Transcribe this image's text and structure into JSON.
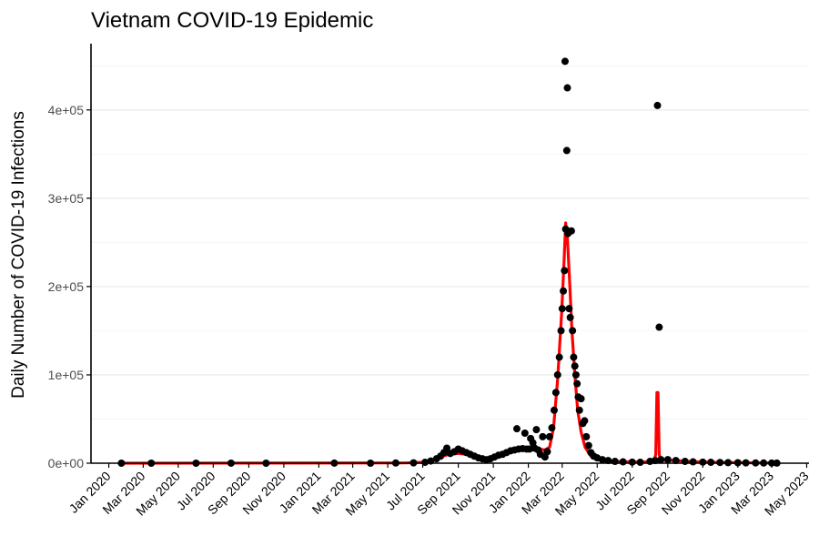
{
  "chart_data": {
    "type": "scatter",
    "title": "Vietnam COVID-19 Epidemic",
    "xlabel": "",
    "ylabel": "Daily Number of COVID-19 Infections",
    "x_domain": [
      "2019-12-01",
      "2023-05-05"
    ],
    "ylim": [
      0,
      475000
    ],
    "y_ticks": [
      {
        "value": 0,
        "label": "0e+00"
      },
      {
        "value": 100000,
        "label": "1e+05"
      },
      {
        "value": 200000,
        "label": "2e+05"
      },
      {
        "value": 300000,
        "label": "3e+05"
      },
      {
        "value": 400000,
        "label": "4e+05"
      }
    ],
    "x_ticks": [
      {
        "date": "2020-01-01",
        "label": "Jan 2020"
      },
      {
        "date": "2020-03-01",
        "label": "Mar 2020"
      },
      {
        "date": "2020-05-01",
        "label": "May 2020"
      },
      {
        "date": "2020-07-01",
        "label": "Jul 2020"
      },
      {
        "date": "2020-09-01",
        "label": "Sep 2020"
      },
      {
        "date": "2020-11-01",
        "label": "Nov 2020"
      },
      {
        "date": "2021-01-01",
        "label": "Jan 2021"
      },
      {
        "date": "2021-03-01",
        "label": "Mar 2021"
      },
      {
        "date": "2021-05-01",
        "label": "May 2021"
      },
      {
        "date": "2021-07-01",
        "label": "Jul 2021"
      },
      {
        "date": "2021-09-01",
        "label": "Sep 2021"
      },
      {
        "date": "2021-11-01",
        "label": "Nov 2021"
      },
      {
        "date": "2022-01-01",
        "label": "Jan 2022"
      },
      {
        "date": "2022-03-01",
        "label": "Mar 2022"
      },
      {
        "date": "2022-05-01",
        "label": "May 2022"
      },
      {
        "date": "2022-07-01",
        "label": "Jul 2022"
      },
      {
        "date": "2022-09-01",
        "label": "Sep 2022"
      },
      {
        "date": "2022-11-01",
        "label": "Nov 2022"
      },
      {
        "date": "2023-01-01",
        "label": "Jan 2023"
      },
      {
        "date": "2023-03-01",
        "label": "Mar 2023"
      },
      {
        "date": "2023-05-01",
        "label": "May 2023"
      }
    ],
    "grid": true,
    "legend": "none",
    "series": [
      {
        "kind": "points",
        "color": "#000000",
        "points": [
          {
            "x": "2020-01-23",
            "y": 0
          },
          {
            "x": "2020-03-15",
            "y": 10
          },
          {
            "x": "2020-06-01",
            "y": 0
          },
          {
            "x": "2020-08-01",
            "y": 30
          },
          {
            "x": "2020-10-01",
            "y": 0
          },
          {
            "x": "2021-01-28",
            "y": 80
          },
          {
            "x": "2021-04-01",
            "y": 0
          },
          {
            "x": "2021-05-15",
            "y": 200
          },
          {
            "x": "2021-06-15",
            "y": 400
          },
          {
            "x": "2021-07-05",
            "y": 1000
          },
          {
            "x": "2021-07-15",
            "y": 2500
          },
          {
            "x": "2021-07-25",
            "y": 5000
          },
          {
            "x": "2021-08-01",
            "y": 8000
          },
          {
            "x": "2021-08-07",
            "y": 12000
          },
          {
            "x": "2021-08-12",
            "y": 17000
          },
          {
            "x": "2021-08-18",
            "y": 11000
          },
          {
            "x": "2021-08-25",
            "y": 13000
          },
          {
            "x": "2021-09-01",
            "y": 16000
          },
          {
            "x": "2021-09-08",
            "y": 14000
          },
          {
            "x": "2021-09-15",
            "y": 12000
          },
          {
            "x": "2021-09-22",
            "y": 10000
          },
          {
            "x": "2021-09-29",
            "y": 8000
          },
          {
            "x": "2021-10-06",
            "y": 6000
          },
          {
            "x": "2021-10-13",
            "y": 5000
          },
          {
            "x": "2021-10-20",
            "y": 4000
          },
          {
            "x": "2021-10-27",
            "y": 5000
          },
          {
            "x": "2021-11-03",
            "y": 7000
          },
          {
            "x": "2021-11-10",
            "y": 9000
          },
          {
            "x": "2021-11-17",
            "y": 10000
          },
          {
            "x": "2021-11-24",
            "y": 12000
          },
          {
            "x": "2021-12-01",
            "y": 14000
          },
          {
            "x": "2021-12-08",
            "y": 15000
          },
          {
            "x": "2021-12-12",
            "y": 39000
          },
          {
            "x": "2021-12-15",
            "y": 16000
          },
          {
            "x": "2021-12-22",
            "y": 16500
          },
          {
            "x": "2021-12-26",
            "y": 34000
          },
          {
            "x": "2021-12-29",
            "y": 16000
          },
          {
            "x": "2022-01-03",
            "y": 16000
          },
          {
            "x": "2022-01-05",
            "y": 28000
          },
          {
            "x": "2022-01-09",
            "y": 23000
          },
          {
            "x": "2022-01-12",
            "y": 17000
          },
          {
            "x": "2022-01-15",
            "y": 38000
          },
          {
            "x": "2022-01-18",
            "y": 15000
          },
          {
            "x": "2022-01-22",
            "y": 10000
          },
          {
            "x": "2022-01-26",
            "y": 30000
          },
          {
            "x": "2022-01-30",
            "y": 7000
          },
          {
            "x": "2022-02-03",
            "y": 13000
          },
          {
            "x": "2022-02-07",
            "y": 30000
          },
          {
            "x": "2022-02-11",
            "y": 40000
          },
          {
            "x": "2022-02-15",
            "y": 60000
          },
          {
            "x": "2022-02-18",
            "y": 80000
          },
          {
            "x": "2022-02-21",
            "y": 100000
          },
          {
            "x": "2022-02-24",
            "y": 120000
          },
          {
            "x": "2022-02-27",
            "y": 150000
          },
          {
            "x": "2022-03-01",
            "y": 175000
          },
          {
            "x": "2022-03-03",
            "y": 195000
          },
          {
            "x": "2022-03-05",
            "y": 218000
          },
          {
            "x": "2022-03-06",
            "y": 455000
          },
          {
            "x": "2022-03-07",
            "y": 265000
          },
          {
            "x": "2022-03-09",
            "y": 354000
          },
          {
            "x": "2022-03-10",
            "y": 425000
          },
          {
            "x": "2022-03-11",
            "y": 260000
          },
          {
            "x": "2022-03-13",
            "y": 175000
          },
          {
            "x": "2022-03-15",
            "y": 165000
          },
          {
            "x": "2022-03-17",
            "y": 263000
          },
          {
            "x": "2022-03-19",
            "y": 150000
          },
          {
            "x": "2022-03-21",
            "y": 120000
          },
          {
            "x": "2022-03-23",
            "y": 110000
          },
          {
            "x": "2022-03-25",
            "y": 100000
          },
          {
            "x": "2022-03-27",
            "y": 90000
          },
          {
            "x": "2022-03-29",
            "y": 75000
          },
          {
            "x": "2022-03-31",
            "y": 60000
          },
          {
            "x": "2022-04-03",
            "y": 73000
          },
          {
            "x": "2022-04-06",
            "y": 45000
          },
          {
            "x": "2022-04-09",
            "y": 48000
          },
          {
            "x": "2022-04-12",
            "y": 30000
          },
          {
            "x": "2022-04-16",
            "y": 20000
          },
          {
            "x": "2022-04-20",
            "y": 12000
          },
          {
            "x": "2022-04-25",
            "y": 8000
          },
          {
            "x": "2022-05-01",
            "y": 6000
          },
          {
            "x": "2022-05-10",
            "y": 4000
          },
          {
            "x": "2022-05-20",
            "y": 3000
          },
          {
            "x": "2022-06-01",
            "y": 2000
          },
          {
            "x": "2022-06-15",
            "y": 1500
          },
          {
            "x": "2022-07-01",
            "y": 1200
          },
          {
            "x": "2022-07-15",
            "y": 1000
          },
          {
            "x": "2022-08-01",
            "y": 2000
          },
          {
            "x": "2022-08-10",
            "y": 3000
          },
          {
            "x": "2022-08-14",
            "y": 405000
          },
          {
            "x": "2022-08-17",
            "y": 154000
          },
          {
            "x": "2022-08-20",
            "y": 4000
          },
          {
            "x": "2022-09-01",
            "y": 4000
          },
          {
            "x": "2022-09-15",
            "y": 3000
          },
          {
            "x": "2022-10-01",
            "y": 2000
          },
          {
            "x": "2022-10-15",
            "y": 1500
          },
          {
            "x": "2022-11-01",
            "y": 1200
          },
          {
            "x": "2022-11-15",
            "y": 1000
          },
          {
            "x": "2022-12-01",
            "y": 800
          },
          {
            "x": "2022-12-15",
            "y": 600
          },
          {
            "x": "2023-01-01",
            "y": 500
          },
          {
            "x": "2023-01-15",
            "y": 400
          },
          {
            "x": "2023-02-01",
            "y": 300
          },
          {
            "x": "2023-02-15",
            "y": 200
          },
          {
            "x": "2023-03-01",
            "y": 150
          },
          {
            "x": "2023-03-10",
            "y": 100
          }
        ]
      },
      {
        "kind": "line",
        "color": "#ff0000",
        "points": [
          {
            "x": "2020-01-23",
            "y": 0
          },
          {
            "x": "2021-06-01",
            "y": 300
          },
          {
            "x": "2021-07-01",
            "y": 1000
          },
          {
            "x": "2021-07-15",
            "y": 3000
          },
          {
            "x": "2021-08-01",
            "y": 7000
          },
          {
            "x": "2021-08-15",
            "y": 10000
          },
          {
            "x": "2021-09-01",
            "y": 11000
          },
          {
            "x": "2021-09-15",
            "y": 10000
          },
          {
            "x": "2021-10-01",
            "y": 7000
          },
          {
            "x": "2021-10-15",
            "y": 5000
          },
          {
            "x": "2021-11-01",
            "y": 5500
          },
          {
            "x": "2021-11-15",
            "y": 9000
          },
          {
            "x": "2021-12-01",
            "y": 13000
          },
          {
            "x": "2021-12-15",
            "y": 15000
          },
          {
            "x": "2022-01-01",
            "y": 16000
          },
          {
            "x": "2022-01-15",
            "y": 16500
          },
          {
            "x": "2022-01-30",
            "y": 15000
          },
          {
            "x": "2022-02-07",
            "y": 18000
          },
          {
            "x": "2022-02-14",
            "y": 40000
          },
          {
            "x": "2022-02-21",
            "y": 95000
          },
          {
            "x": "2022-02-28",
            "y": 170000
          },
          {
            "x": "2022-03-04",
            "y": 225000
          },
          {
            "x": "2022-03-07",
            "y": 272000
          },
          {
            "x": "2022-03-10",
            "y": 255000
          },
          {
            "x": "2022-03-14",
            "y": 205000
          },
          {
            "x": "2022-03-18",
            "y": 150000
          },
          {
            "x": "2022-03-23",
            "y": 100000
          },
          {
            "x": "2022-03-28",
            "y": 60000
          },
          {
            "x": "2022-04-03",
            "y": 35000
          },
          {
            "x": "2022-04-10",
            "y": 18000
          },
          {
            "x": "2022-04-20",
            "y": 8000
          },
          {
            "x": "2022-05-01",
            "y": 4000
          },
          {
            "x": "2022-06-01",
            "y": 2000
          },
          {
            "x": "2022-07-15",
            "y": 1200
          },
          {
            "x": "2022-08-08",
            "y": 2000
          },
          {
            "x": "2022-08-11",
            "y": 10000
          },
          {
            "x": "2022-08-13",
            "y": 80000
          },
          {
            "x": "2022-08-15",
            "y": 80000
          },
          {
            "x": "2022-08-17",
            "y": 10000
          },
          {
            "x": "2022-08-20",
            "y": 3500
          },
          {
            "x": "2022-09-15",
            "y": 3000
          },
          {
            "x": "2022-10-15",
            "y": 1800
          },
          {
            "x": "2022-12-01",
            "y": 900
          },
          {
            "x": "2023-01-15",
            "y": 500
          },
          {
            "x": "2023-03-10",
            "y": 150
          }
        ]
      }
    ]
  }
}
